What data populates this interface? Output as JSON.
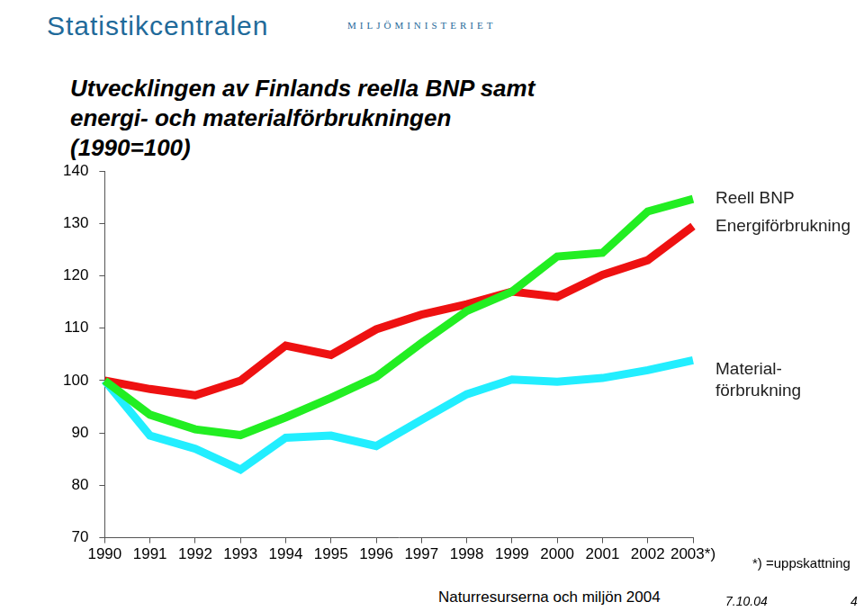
{
  "page": {
    "publisher": "Statistikcentralen",
    "ministry": "MILJÖMINISTERIET",
    "footer": "Naturresurserna och miljön 2004",
    "note": "*) =uppskattning",
    "date": "7.10.04",
    "page_number": "4"
  },
  "chart_data": {
    "type": "line",
    "title": "Utvecklingen av Finlands reella BNP samt energi- och materialförbrukningen (1990=100)",
    "categories": [
      "1990",
      "1991",
      "1992",
      "1993",
      "1994",
      "1995",
      "1996",
      "1997",
      "1998",
      "1999",
      "2000",
      "2001",
      "2002",
      "2003*)"
    ],
    "series": [
      {
        "name": "Reell BNP",
        "color": "#22ee22",
        "values": [
          100,
          93.5,
          90.7,
          89.6,
          93,
          96.7,
          100.7,
          107.2,
          113.3,
          117,
          123.7,
          124.4,
          132.3,
          134.7
        ]
      },
      {
        "name": "Energiförbrukning",
        "color": "#ee1111",
        "values": [
          100,
          98.4,
          97.2,
          100,
          106.7,
          104.9,
          109.8,
          112.6,
          114.6,
          117,
          116,
          120.2,
          123,
          129.5
        ]
      },
      {
        "name": "Material-\nförbrukning",
        "color": "#22eeff",
        "values": [
          100,
          89.5,
          87,
          83,
          89.1,
          89.5,
          87.5,
          92.5,
          97.4,
          100.2,
          99.8,
          100.5,
          102,
          103.9
        ]
      }
    ],
    "ylim": [
      70,
      140
    ],
    "yticks": [
      70,
      80,
      90,
      100,
      110,
      120,
      130,
      140
    ],
    "grid": false,
    "legend": false
  }
}
